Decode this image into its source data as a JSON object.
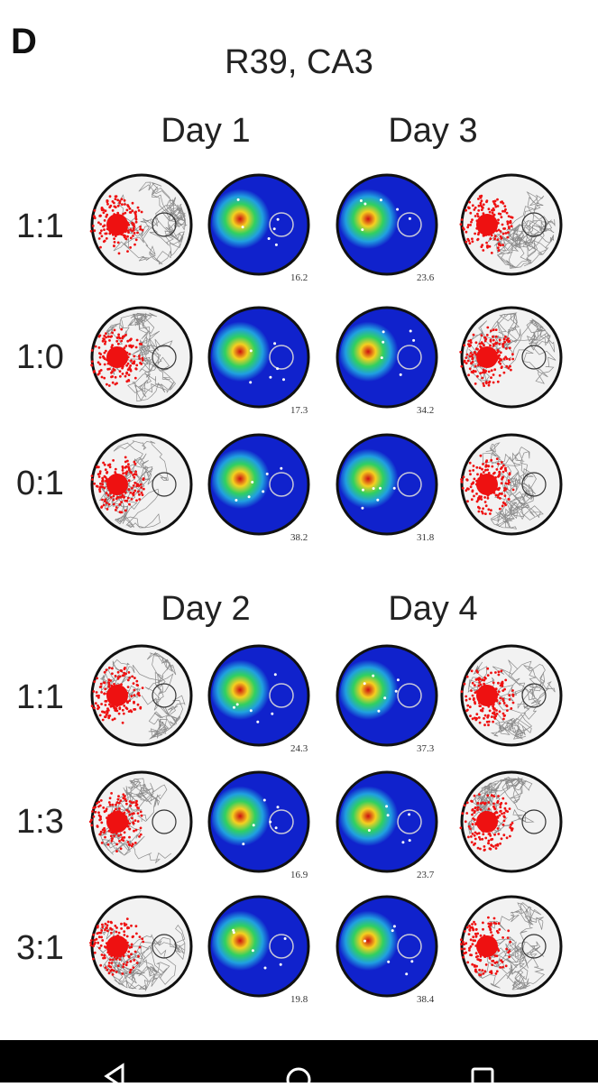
{
  "panel_label": "D",
  "title": "R39, CA3",
  "colors": {
    "trajectory": "#7a7a7a",
    "spike": "#ee1111",
    "map_background": "#1022cc",
    "navbar": "#000000"
  },
  "groups": [
    {
      "days": [
        "Day 1",
        "Day 3"
      ],
      "rows": [
        {
          "ratio": "1:1",
          "peaks": [
            "16.2",
            "23.6"
          ]
        },
        {
          "ratio": "1:0",
          "peaks": [
            "17.3",
            "34.2"
          ]
        },
        {
          "ratio": "0:1",
          "peaks": [
            "38.2",
            "31.8"
          ]
        }
      ]
    },
    {
      "days": [
        "Day 2",
        "Day 4"
      ],
      "rows": [
        {
          "ratio": "1:1",
          "peaks": [
            "24.3",
            "37.3"
          ]
        },
        {
          "ratio": "1:3",
          "peaks": [
            "16.9",
            "23.7"
          ]
        },
        {
          "ratio": "3:1",
          "peaks": [
            "19.8",
            "38.4"
          ]
        }
      ]
    }
  ],
  "navbar": {
    "buttons": [
      "back-icon",
      "home-icon",
      "recents-icon"
    ]
  }
}
